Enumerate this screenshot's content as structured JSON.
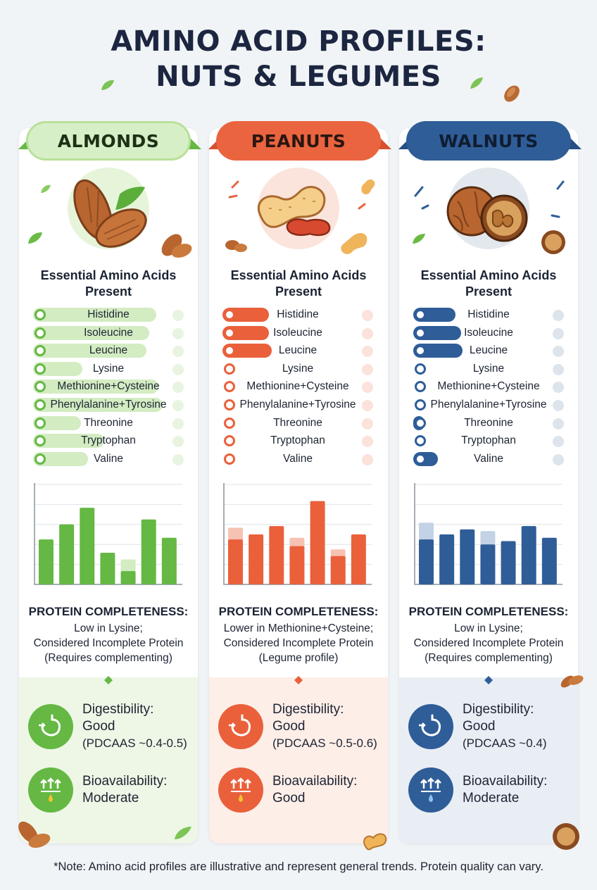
{
  "title_line1": "AMINO ACID PROFILES:",
  "title_line2": "NUTS & LEGUMES",
  "section_title_line1": "Essential Amino Acids",
  "section_title_line2": "Present",
  "amino_acids": [
    "Histidine",
    "Isoleucine",
    "Leucine",
    "Lysine",
    "Methionine+Cysteine",
    "Phenylalanine+Tyrosine",
    "Threonine",
    "Tryptophan",
    "Valine"
  ],
  "completeness_title": "PROTEIN COMPLETENESS:",
  "columns": [
    {
      "name": "ALMONDS",
      "accent": "#64b843",
      "light": "#d3ecc2",
      "pale": "#e8f4df",
      "tint": "#eef7e6",
      "icon": "almond-icon",
      "bar_levels": [
        0.9,
        0.85,
        0.83,
        0.36,
        0.92,
        0.95,
        0.35,
        0.52,
        0.4
      ],
      "completeness": [
        "Low in Lysine;",
        "Considered Incomplete Protein",
        "(Requires complementing)"
      ],
      "digestibility_label": "Digestibility:",
      "digestibility_value": "Good",
      "digestibility_note": "(PDCAAS ~0.4-0.5)",
      "bioavailability_label": "Bioavailability:",
      "bioavailability_value": "Moderate"
    },
    {
      "name": "PEANUTS",
      "accent": "#e9603b",
      "light": "#f8c2b3",
      "pale": "#fbe2da",
      "tint": "#fdeee8",
      "icon": "peanut-icon",
      "bar_levels": [
        0.34,
        0.34,
        0.36,
        0.0,
        0.0,
        0.0,
        0.0,
        0.0,
        0.0
      ],
      "completeness": [
        "Lower in Methionine+Cysteine;",
        "Considered Incomplete Protein",
        "(Legume profile)"
      ],
      "digestibility_label": "Digestibility:",
      "digestibility_value": "Good",
      "digestibility_note": "(PDCAAS ~0.5-0.6)",
      "bioavailability_label": "Bioavailability:",
      "bioavailability_value": "Good"
    },
    {
      "name": "WALNUTS",
      "accent": "#2f5d98",
      "light": "#c3d2e5",
      "pale": "#dde4ec",
      "tint": "#e9eef4",
      "icon": "walnut-icon",
      "bar_levels": [
        0.31,
        0.35,
        0.36,
        0.0,
        0.0,
        0.0,
        0.08,
        0.0,
        0.18
      ],
      "completeness": [
        "Low in Lysine;",
        "Considered Incomplete Protein",
        "(Requires complementing)"
      ],
      "digestibility_label": "Digestibility:",
      "digestibility_value": "Good",
      "digestibility_note": "(PDCAAS ~0.4)",
      "bioavailability_label": "Bioavailability:",
      "bioavailability_value": "Moderate"
    }
  ],
  "chart_data": [
    {
      "type": "bar",
      "title": "",
      "xlabel": "",
      "ylabel": "",
      "grid": true,
      "ylim": [
        0,
        6
      ],
      "series": [
        {
          "values": [
            2.7,
            3.6,
            4.6,
            1.9,
            0.8,
            3.9,
            2.8
          ]
        },
        {
          "values": [
            0,
            0,
            0,
            0,
            1.5,
            0,
            0
          ]
        }
      ]
    },
    {
      "type": "bar",
      "title": "",
      "xlabel": "",
      "ylabel": "",
      "grid": true,
      "ylim": [
        0,
        6
      ],
      "series": [
        {
          "values": [
            2.7,
            3.0,
            3.5,
            2.3,
            5.0,
            1.7,
            3.0
          ]
        },
        {
          "values": [
            3.4,
            0,
            0,
            2.8,
            0,
            2.1,
            0
          ]
        }
      ]
    },
    {
      "type": "bar",
      "title": "",
      "xlabel": "",
      "ylabel": "",
      "grid": true,
      "ylim": [
        0,
        6
      ],
      "series": [
        {
          "values": [
            2.7,
            3.0,
            3.3,
            2.4,
            2.6,
            3.5,
            2.8
          ]
        },
        {
          "values": [
            3.7,
            0,
            0,
            3.2,
            0,
            0,
            0
          ]
        }
      ]
    }
  ],
  "note": "*Note: Amino acid profiles are illustrative and represent general trends. Protein quality can vary."
}
